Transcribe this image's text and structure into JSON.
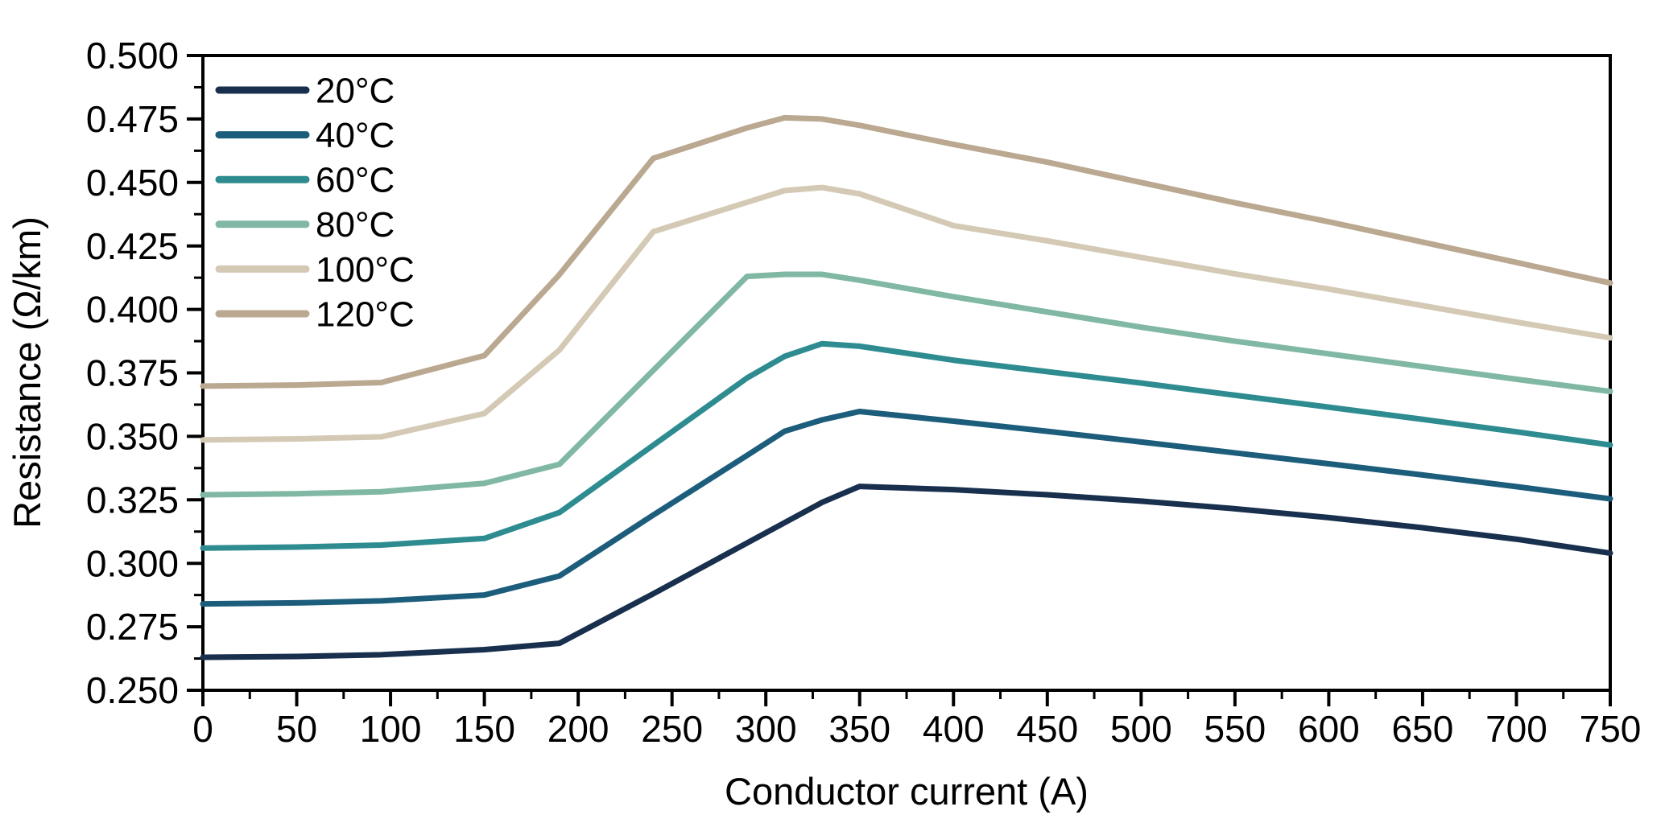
{
  "figure": {
    "background": "#ffffff",
    "axis_color": "#000000"
  },
  "chart_data": {
    "type": "line",
    "title": "",
    "xlabel": "Conductor current (A)",
    "ylabel": "Resistance (Ω/km)",
    "xlim": [
      0,
      750
    ],
    "ylim": [
      0.25,
      0.5
    ],
    "x_major_tick_step": 50,
    "x_minor_tick_step": 25,
    "y_major_tick_step": 0.025,
    "y_minor_tick_step": 0.0125,
    "y_tick_decimals": 3,
    "grid": false,
    "legend_position": "upper-left",
    "x": [
      0,
      50,
      95,
      150,
      190,
      240,
      290,
      310,
      330,
      350,
      400,
      450,
      500,
      550,
      600,
      650,
      700,
      750
    ],
    "series": [
      {
        "name": "20°C",
        "color": "#18304d",
        "values": [
          0.263,
          0.2633,
          0.264,
          0.266,
          0.2685,
          0.288,
          0.308,
          0.316,
          0.324,
          0.3303,
          0.329,
          0.327,
          0.3245,
          0.3215,
          0.318,
          0.314,
          0.3095,
          0.304
        ]
      },
      {
        "name": "40°C",
        "color": "#1d5d7c",
        "values": [
          0.284,
          0.2844,
          0.2852,
          0.2875,
          0.295,
          0.319,
          0.3425,
          0.352,
          0.3565,
          0.3598,
          0.356,
          0.352,
          0.3478,
          0.3435,
          0.3392,
          0.3348,
          0.3302,
          0.3254
        ]
      },
      {
        "name": "60°C",
        "color": "#2e8c91",
        "values": [
          0.306,
          0.3064,
          0.3072,
          0.3098,
          0.32,
          0.3465,
          0.373,
          0.3815,
          0.3865,
          0.3855,
          0.38,
          0.3755,
          0.371,
          0.3662,
          0.3615,
          0.3567,
          0.3518,
          0.3466
        ]
      },
      {
        "name": "80°C",
        "color": "#80b8a4",
        "values": [
          0.327,
          0.3274,
          0.3282,
          0.3315,
          0.339,
          0.376,
          0.413,
          0.4138,
          0.4138,
          0.4115,
          0.405,
          0.399,
          0.393,
          0.3875,
          0.3825,
          0.3775,
          0.3725,
          0.3677
        ]
      },
      {
        "name": "100°C",
        "color": "#d4c9b4",
        "values": [
          0.3486,
          0.349,
          0.3498,
          0.359,
          0.384,
          0.4306,
          0.4422,
          0.4468,
          0.448,
          0.4455,
          0.433,
          0.427,
          0.4205,
          0.414,
          0.408,
          0.4015,
          0.395,
          0.3888
        ]
      },
      {
        "name": "120°C",
        "color": "#baa890",
        "values": [
          0.3698,
          0.3702,
          0.3712,
          0.3818,
          0.4137,
          0.4595,
          0.4715,
          0.4755,
          0.475,
          0.4725,
          0.465,
          0.458,
          0.45,
          0.442,
          0.4345,
          0.4265,
          0.4185,
          0.4104
        ]
      }
    ]
  }
}
